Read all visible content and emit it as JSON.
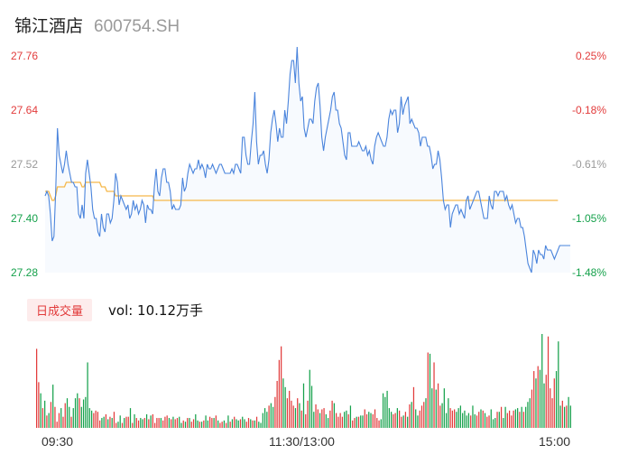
{
  "header": {
    "name": "锦江酒店",
    "code": "600754.SH"
  },
  "chart_data": [
    {
      "type": "line",
      "y_ticks_left": [
        "27.76",
        "27.64",
        "27.52",
        "27.40",
        "27.28"
      ],
      "y_ticks_right": [
        "0.25%",
        "-0.18%",
        "-0.61%",
        "-1.05%",
        "-1.48%"
      ],
      "ylim": [
        27.28,
        27.76
      ],
      "x_ticks": [
        "09:30",
        "11:30/13:00",
        "15:00"
      ],
      "colors": {
        "price": "#4a84dc",
        "avg": "#f5b84a",
        "up": "#e23b3b",
        "down": "#15a14b",
        "neutral": "#999999"
      },
      "series": [
        {
          "values": [
            27.45,
            27.46,
            27.45,
            27.41,
            27.35,
            27.36,
            27.46,
            27.6,
            27.54,
            27.52,
            27.5,
            27.52,
            27.55,
            27.52,
            27.5,
            27.48,
            27.48,
            27.47,
            27.47,
            27.41,
            27.4,
            27.43,
            27.4,
            27.5,
            27.53,
            27.5,
            27.47,
            27.42,
            27.4,
            27.4,
            27.37,
            27.36,
            27.41,
            27.38,
            27.37,
            27.41,
            27.41,
            27.39,
            27.4,
            27.44,
            27.5,
            27.48,
            27.43,
            27.45,
            27.44,
            27.43,
            27.42,
            27.43,
            27.4,
            27.41,
            27.44,
            27.42,
            27.43,
            27.41,
            27.42,
            27.44,
            27.43,
            27.39,
            27.43,
            27.42,
            27.42,
            27.41,
            27.47,
            27.51,
            27.46,
            27.45,
            27.49,
            27.51,
            27.51,
            27.48,
            27.48,
            27.46,
            27.42,
            27.43,
            27.42,
            27.42,
            27.42,
            27.43,
            27.49,
            27.46,
            27.47,
            27.5,
            27.52,
            27.51,
            27.5,
            27.51,
            27.51,
            27.53,
            27.51,
            27.52,
            27.51,
            27.49,
            27.52,
            27.51,
            27.51,
            27.52,
            27.51,
            27.5,
            27.51,
            27.52,
            27.52,
            27.51,
            27.5,
            27.5,
            27.5,
            27.5,
            27.51,
            27.5,
            27.52,
            27.52,
            27.51,
            27.5,
            27.58,
            27.58,
            27.54,
            27.52,
            27.52,
            27.57,
            27.61,
            27.68,
            27.57,
            27.52,
            27.54,
            27.54,
            27.55,
            27.52,
            27.5,
            27.53,
            27.59,
            27.62,
            27.64,
            27.61,
            27.57,
            27.6,
            27.58,
            27.58,
            27.64,
            27.61,
            27.66,
            27.72,
            27.75,
            27.75,
            27.7,
            27.78,
            27.7,
            27.66,
            27.67,
            27.6,
            27.58,
            27.6,
            27.62,
            27.62,
            27.61,
            27.66,
            27.69,
            27.7,
            27.65,
            27.58,
            27.55,
            27.58,
            27.6,
            27.62,
            27.64,
            27.67,
            27.68,
            27.64,
            27.64,
            27.61,
            27.6,
            27.57,
            27.54,
            27.53,
            27.59,
            27.59,
            27.56,
            27.56,
            27.56,
            27.56,
            27.57,
            27.56,
            27.55,
            27.55,
            27.56,
            27.54,
            27.55,
            27.53,
            27.52,
            27.56,
            27.58,
            27.59,
            27.58,
            27.57,
            27.56,
            27.56,
            27.58,
            27.62,
            27.64,
            27.63,
            27.64,
            27.64,
            27.59,
            27.61,
            27.67,
            27.63,
            27.65,
            27.66,
            27.67,
            27.61,
            27.62,
            27.61,
            27.6,
            27.6,
            27.59,
            27.56,
            27.58,
            27.58,
            27.58,
            27.56,
            27.56,
            27.54,
            27.51,
            27.52,
            27.52,
            27.55,
            27.53,
            27.49,
            27.44,
            27.42,
            27.43,
            27.43,
            27.38,
            27.41,
            27.42,
            27.43,
            27.43,
            27.41,
            27.42,
            27.41,
            27.4,
            27.44,
            27.45,
            27.42,
            27.43,
            27.44,
            27.45,
            27.46,
            27.46,
            27.44,
            27.42,
            27.4,
            27.4,
            27.4,
            27.45,
            27.43,
            27.42,
            27.46,
            27.46,
            27.45,
            27.46,
            27.46,
            27.46,
            27.44,
            27.45,
            27.43,
            27.42,
            27.43,
            27.41,
            27.39,
            27.4,
            27.4,
            27.38,
            27.38,
            27.36,
            27.33,
            27.3,
            27.29,
            27.28,
            27.33,
            27.32,
            27.3,
            27.33,
            27.32,
            27.32,
            27.31,
            27.34,
            27.33,
            27.33,
            27.33,
            27.32,
            27.31,
            27.32,
            27.33,
            27.34,
            27.34,
            27.34,
            27.34,
            27.34,
            27.34,
            27.34
          ]
        },
        {
          "values": [
            27.46,
            27.46,
            27.46,
            27.45,
            27.44,
            27.44,
            27.45,
            27.47,
            27.47,
            27.47,
            27.47,
            27.47,
            27.48,
            27.48,
            27.48,
            27.48,
            27.48,
            27.48,
            27.48,
            27.48,
            27.48,
            27.47,
            27.47,
            27.48,
            27.48,
            27.48,
            27.48,
            27.48,
            27.48,
            27.48,
            27.48,
            27.48,
            27.47,
            27.47,
            27.47,
            27.46,
            27.46,
            27.46,
            27.46,
            27.46,
            27.45,
            27.45,
            27.45,
            27.45,
            27.45,
            27.45,
            27.45,
            27.45,
            27.45,
            27.45,
            27.45,
            27.45,
            27.45,
            27.45,
            27.45,
            27.45,
            27.45,
            27.45,
            27.45,
            27.45,
            27.45,
            27.45,
            27.44,
            27.44,
            27.44,
            27.44,
            27.44,
            27.44,
            27.44,
            27.44,
            27.44,
            27.44,
            27.44,
            27.44,
            27.44,
            27.44,
            27.44,
            27.44,
            27.44,
            27.44,
            27.44,
            27.44,
            27.44,
            27.44,
            27.44,
            27.44,
            27.44,
            27.44,
            27.44,
            27.44,
            27.44,
            27.44,
            27.44,
            27.44,
            27.44,
            27.44,
            27.44,
            27.44,
            27.44,
            27.44,
            27.44,
            27.44,
            27.44,
            27.44,
            27.44,
            27.44,
            27.44,
            27.44,
            27.44,
            27.44,
            27.44,
            27.44,
            27.44,
            27.44,
            27.44,
            27.44,
            27.44,
            27.44,
            27.44,
            27.44,
            27.44,
            27.44,
            27.44,
            27.44,
            27.44,
            27.44,
            27.44,
            27.44,
            27.44,
            27.44,
            27.44,
            27.44,
            27.44,
            27.44,
            27.44,
            27.44,
            27.44,
            27.44,
            27.44,
            27.44,
            27.44,
            27.44,
            27.44,
            27.44,
            27.44,
            27.44,
            27.44,
            27.44,
            27.44,
            27.44,
            27.44,
            27.44,
            27.44,
            27.44,
            27.44,
            27.44,
            27.44,
            27.44,
            27.44,
            27.44,
            27.44,
            27.44,
            27.44,
            27.44,
            27.44,
            27.44,
            27.44,
            27.44,
            27.44,
            27.44,
            27.44,
            27.44,
            27.44,
            27.44,
            27.44,
            27.44,
            27.44,
            27.44,
            27.44,
            27.44,
            27.44,
            27.44,
            27.44,
            27.44,
            27.44,
            27.44,
            27.44,
            27.44,
            27.44,
            27.44,
            27.44,
            27.44,
            27.44,
            27.44,
            27.44,
            27.44,
            27.44,
            27.44,
            27.44,
            27.44,
            27.44,
            27.44,
            27.44,
            27.44,
            27.44,
            27.44,
            27.44,
            27.44,
            27.44,
            27.44,
            27.44,
            27.44,
            27.44,
            27.44,
            27.44,
            27.44,
            27.44,
            27.44,
            27.44,
            27.44,
            27.44,
            27.44,
            27.44,
            27.44,
            27.44,
            27.44,
            27.44,
            27.44,
            27.44,
            27.44,
            27.44,
            27.44,
            27.44,
            27.44,
            27.44,
            27.44,
            27.44,
            27.44,
            27.44,
            27.44,
            27.44,
            27.44,
            27.44,
            27.44,
            27.44,
            27.44,
            27.44,
            27.44,
            27.44,
            27.44,
            27.44,
            27.44,
            27.44,
            27.44,
            27.44,
            27.44,
            27.44,
            27.44,
            27.44,
            27.44,
            27.44,
            27.44,
            27.44,
            27.44,
            27.44,
            27.44,
            27.44,
            27.44,
            27.44,
            27.44,
            27.44,
            27.44,
            27.44,
            27.44,
            27.44,
            27.44,
            27.44,
            27.44,
            27.44,
            27.44,
            27.44,
            27.44,
            27.44,
            27.44,
            27.44,
            27.44,
            27.44,
            27.44,
            27.44,
            27.44,
            27.44,
            27.44
          ]
        }
      ]
    },
    {
      "type": "bar",
      "indicator_label": "日成交量",
      "volume_text": "vol: 10.12万手",
      "volumes": [
        64,
        37,
        28,
        16,
        22,
        10,
        12,
        21,
        35,
        17,
        5,
        12,
        16,
        9,
        20,
        24,
        17,
        9,
        16,
        24,
        28,
        24,
        17,
        23,
        25,
        53,
        16,
        14,
        12,
        14,
        13,
        6,
        8,
        9,
        11,
        7,
        9,
        8,
        13,
        4,
        5,
        10,
        4,
        8,
        9,
        9,
        16,
        4,
        11,
        8,
        6,
        8,
        7,
        8,
        11,
        7,
        10,
        11,
        4,
        8,
        8,
        8,
        6,
        9,
        10,
        8,
        7,
        9,
        7,
        8,
        9,
        4,
        6,
        5,
        8,
        8,
        5,
        7,
        11,
        6,
        5,
        5,
        6,
        10,
        6,
        9,
        8,
        8,
        10,
        6,
        4,
        5,
        6,
        4,
        10,
        5,
        7,
        9,
        7,
        6,
        7,
        9,
        7,
        5,
        8,
        7,
        6,
        6,
        9,
        5,
        4,
        12,
        16,
        13,
        18,
        20,
        17,
        25,
        38,
        55,
        66,
        40,
        33,
        24,
        30,
        22,
        18,
        16,
        24,
        20,
        14,
        36,
        11,
        22,
        47,
        34,
        13,
        19,
        15,
        12,
        15,
        16,
        11,
        8,
        14,
        22,
        20,
        12,
        9,
        12,
        9,
        13,
        14,
        11,
        18,
        6,
        8,
        9,
        9,
        10,
        10,
        15,
        11,
        13,
        12,
        11,
        15,
        8,
        6,
        7,
        28,
        25,
        30,
        16,
        13,
        11,
        12,
        16,
        14,
        9,
        10,
        13,
        9,
        19,
        21,
        33,
        15,
        10,
        14,
        18,
        21,
        24,
        61,
        60,
        32,
        53,
        31,
        36,
        18,
        20,
        32,
        12,
        24,
        16,
        14,
        15,
        13,
        16,
        18,
        12,
        14,
        10,
        12,
        10,
        18,
        11,
        10,
        13,
        15,
        14,
        12,
        9,
        10,
        15,
        7,
        8,
        13,
        13,
        17,
        8,
        17,
        12,
        14,
        10,
        14,
        15,
        16,
        13,
        17,
        13,
        17,
        21,
        24,
        31,
        46,
        40,
        50,
        47,
        76,
        36,
        43,
        74,
        32,
        24,
        40,
        46,
        70,
        18,
        22,
        17,
        18,
        25,
        18
      ],
      "directions": [
        "u",
        "u",
        "d",
        "u",
        "d",
        "u",
        "d",
        "u",
        "d",
        "u",
        "u",
        "u",
        "d",
        "u",
        "u",
        "d",
        "d",
        "u",
        "d",
        "d",
        "d",
        "u",
        "d",
        "d",
        "d",
        "d",
        "d",
        "d",
        "u",
        "u",
        "u",
        "u",
        "d",
        "d",
        "u",
        "d",
        "u",
        "d",
        "u",
        "u",
        "d",
        "d",
        "u",
        "d",
        "u",
        "u",
        "d",
        "u",
        "d",
        "u",
        "u",
        "d",
        "d",
        "u",
        "d",
        "u",
        "d",
        "u",
        "u",
        "u",
        "u",
        "d",
        "u",
        "u",
        "u",
        "d",
        "u",
        "d",
        "u",
        "u",
        "d",
        "d",
        "u",
        "d",
        "u",
        "d",
        "u",
        "u",
        "d",
        "d",
        "u",
        "d",
        "u",
        "d",
        "d",
        "u",
        "u",
        "d",
        "u",
        "d",
        "u",
        "u",
        "d",
        "u",
        "d",
        "u",
        "d",
        "u",
        "d",
        "d",
        "u",
        "d",
        "d",
        "u",
        "u",
        "d",
        "u",
        "d",
        "u",
        "d",
        "d",
        "d",
        "d",
        "d",
        "u",
        "d",
        "d",
        "u",
        "u",
        "u",
        "u",
        "d",
        "d",
        "u",
        "u",
        "u",
        "u",
        "d",
        "u",
        "d",
        "u",
        "d",
        "u",
        "u",
        "d",
        "d",
        "d",
        "u",
        "u",
        "d",
        "u",
        "u",
        "d",
        "d",
        "u",
        "u",
        "d",
        "u",
        "u",
        "u",
        "u",
        "d",
        "d",
        "u",
        "d",
        "u",
        "u",
        "d",
        "u",
        "d",
        "d",
        "u",
        "u",
        "d",
        "d",
        "u",
        "u",
        "u",
        "u",
        "d",
        "d",
        "d",
        "d",
        "d",
        "d",
        "u",
        "u",
        "d",
        "u",
        "u",
        "d",
        "u",
        "d",
        "u",
        "d",
        "u",
        "d",
        "d",
        "u",
        "u",
        "u",
        "d",
        "u",
        "d",
        "d",
        "u",
        "d",
        "u",
        "u",
        "d",
        "d",
        "d",
        "d",
        "u",
        "u",
        "u",
        "d",
        "d",
        "d",
        "d",
        "d",
        "d",
        "d",
        "u",
        "d",
        "d",
        "u",
        "u",
        "d",
        "u",
        "d",
        "u",
        "u",
        "d",
        "d",
        "d",
        "u",
        "d",
        "u",
        "d",
        "d",
        "u",
        "u",
        "u",
        "u",
        "d",
        "d",
        "u",
        "d",
        "u",
        "d",
        "d",
        "d",
        "u",
        "u",
        "d",
        "u",
        "d",
        "d",
        "d",
        "u",
        "u",
        "u",
        "u",
        "u",
        "d",
        "d",
        "d",
        "u",
        "d",
        "u",
        "d",
        "d",
        "u",
        "u",
        "d",
        "u",
        "d",
        "u",
        "d",
        "d",
        "d",
        "u",
        "d",
        "d",
        "u",
        "u",
        "u",
        "n"
      ]
    }
  ]
}
